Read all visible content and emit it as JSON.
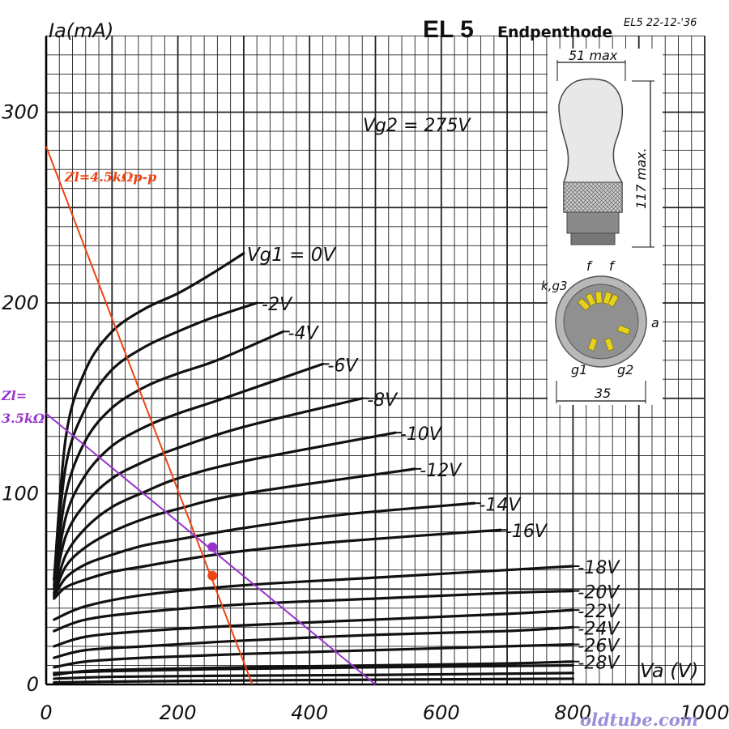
{
  "header": {
    "title": "EL 5",
    "subtitle": "Endpenthode",
    "date_stamp": "EL5 22-12-'36",
    "vg2_label": "Vg2 = 275V"
  },
  "inset": {
    "width_label": "51 max",
    "height_label": "117 max.",
    "base_diameter": "35",
    "pins": {
      "f1": "f",
      "f2": "f",
      "kg3": "k,g3",
      "a": "a",
      "g1": "g1",
      "g2": "g2"
    },
    "colors": {
      "bulb": "#e8e8e8",
      "base": "#8a8a8a",
      "pin": "#e6d21e",
      "socket_ring": "#b8b8b8",
      "socket_face": "#909090"
    }
  },
  "watermark": "oldtube.com",
  "chart_data": {
    "type": "line",
    "title": "EL 5 Endpenthode",
    "xlabel": "Va (V)",
    "ylabel": "Ia(mA)",
    "xlim": [
      0,
      1000
    ],
    "ylim": [
      0,
      340
    ],
    "x_ticks": [
      "0",
      "200",
      "400",
      "600",
      "800",
      "1000"
    ],
    "y_ticks": [
      "0",
      "100",
      "200",
      "300"
    ],
    "y_tick_values": [
      0,
      100,
      200,
      300
    ],
    "x_tick_values": [
      0,
      200,
      400,
      600,
      800,
      1000
    ],
    "grid": true,
    "series": [
      {
        "name": "Vg1 = 0V",
        "x": [
          12,
          30,
          60,
          100,
          150,
          200,
          250,
          300
        ],
        "y": [
          55,
          130,
          165,
          185,
          197,
          205,
          215,
          226
        ]
      },
      {
        "name": "-2V",
        "x": [
          12,
          30,
          60,
          100,
          150,
          200,
          250,
          320
        ],
        "y": [
          55,
          115,
          145,
          165,
          177,
          185,
          192,
          200
        ]
      },
      {
        "name": "-4V",
        "x": [
          12,
          30,
          60,
          100,
          150,
          200,
          260,
          360
        ],
        "y": [
          52,
          100,
          128,
          145,
          156,
          163,
          170,
          185
        ]
      },
      {
        "name": "-6V",
        "x": [
          12,
          30,
          60,
          100,
          150,
          200,
          270,
          420
        ],
        "y": [
          50,
          88,
          110,
          125,
          135,
          142,
          150,
          168
        ]
      },
      {
        "name": "-8V",
        "x": [
          12,
          30,
          60,
          100,
          150,
          200,
          300,
          480
        ],
        "y": [
          50,
          78,
          95,
          108,
          117,
          124,
          135,
          150
        ]
      },
      {
        "name": "-10V",
        "x": [
          12,
          30,
          60,
          100,
          150,
          200,
          300,
          530
        ],
        "y": [
          48,
          68,
          82,
          93,
          101,
          108,
          117,
          132
        ]
      },
      {
        "name": "-12V",
        "x": [
          12,
          30,
          60,
          100,
          150,
          200,
          300,
          560
        ],
        "y": [
          47,
          62,
          72,
          80,
          87,
          92,
          100,
          113
        ]
      },
      {
        "name": "-14V",
        "x": [
          12,
          30,
          60,
          100,
          150,
          200,
          300,
          450,
          650
        ],
        "y": [
          46,
          56,
          63,
          68,
          73,
          76,
          82,
          89,
          95
        ]
      },
      {
        "name": "-16V",
        "x": [
          12,
          30,
          60,
          100,
          150,
          200,
          300,
          450,
          690
        ],
        "y": [
          45,
          51,
          55,
          59,
          62,
          65,
          70,
          75,
          81
        ]
      },
      {
        "name": "-18V",
        "x": [
          12,
          60,
          150,
          300,
          500,
          700,
          800
        ],
        "y": [
          34,
          41,
          47,
          52,
          56,
          60,
          62
        ]
      },
      {
        "name": "-20V",
        "x": [
          12,
          60,
          150,
          300,
          500,
          700,
          800
        ],
        "y": [
          28,
          34,
          38,
          42,
          45,
          48,
          49
        ]
      },
      {
        "name": "-22V",
        "x": [
          12,
          60,
          150,
          300,
          500,
          700,
          800
        ],
        "y": [
          20,
          25,
          28,
          31,
          34,
          37,
          39
        ]
      },
      {
        "name": "-24V",
        "x": [
          12,
          60,
          150,
          300,
          500,
          700,
          800
        ],
        "y": [
          14,
          18,
          20,
          23,
          26,
          28,
          30
        ]
      },
      {
        "name": "-26V",
        "x": [
          12,
          60,
          150,
          300,
          500,
          700,
          800
        ],
        "y": [
          9,
          12,
          14,
          16,
          18,
          20,
          21
        ]
      },
      {
        "name": "-28V",
        "x": [
          12,
          60,
          150,
          300,
          500,
          700,
          800
        ],
        "y": [
          5,
          7,
          8,
          9,
          10,
          11,
          12
        ]
      },
      {
        "name": "",
        "x": [
          12,
          100,
          250,
          500,
          800
        ],
        "y": [
          6,
          7,
          8,
          9,
          10
        ]
      },
      {
        "name": "",
        "x": [
          12,
          100,
          250,
          500,
          800
        ],
        "y": [
          3,
          4,
          4.5,
          5,
          6
        ]
      },
      {
        "name": "",
        "x": [
          12,
          100,
          250,
          500,
          800
        ],
        "y": [
          1,
          1.5,
          2,
          2.5,
          3
        ]
      }
    ],
    "load_lines": [
      {
        "name": "Zl=4.5kΩp-p",
        "color": "#ee4411",
        "x": [
          0,
          313
        ],
        "y": [
          282,
          0
        ]
      },
      {
        "name": "Zl=\n3.5kΩ",
        "label_line1": "Zl=",
        "label_line2": "3.5kΩ",
        "color": "#9933cc",
        "x": [
          0,
          500
        ],
        "y": [
          142,
          0
        ]
      }
    ],
    "operating_points": [
      {
        "x": 250,
        "y": 57,
        "color": "#ee4411"
      },
      {
        "x": 250,
        "y": 72,
        "color": "#9933cc"
      }
    ]
  }
}
